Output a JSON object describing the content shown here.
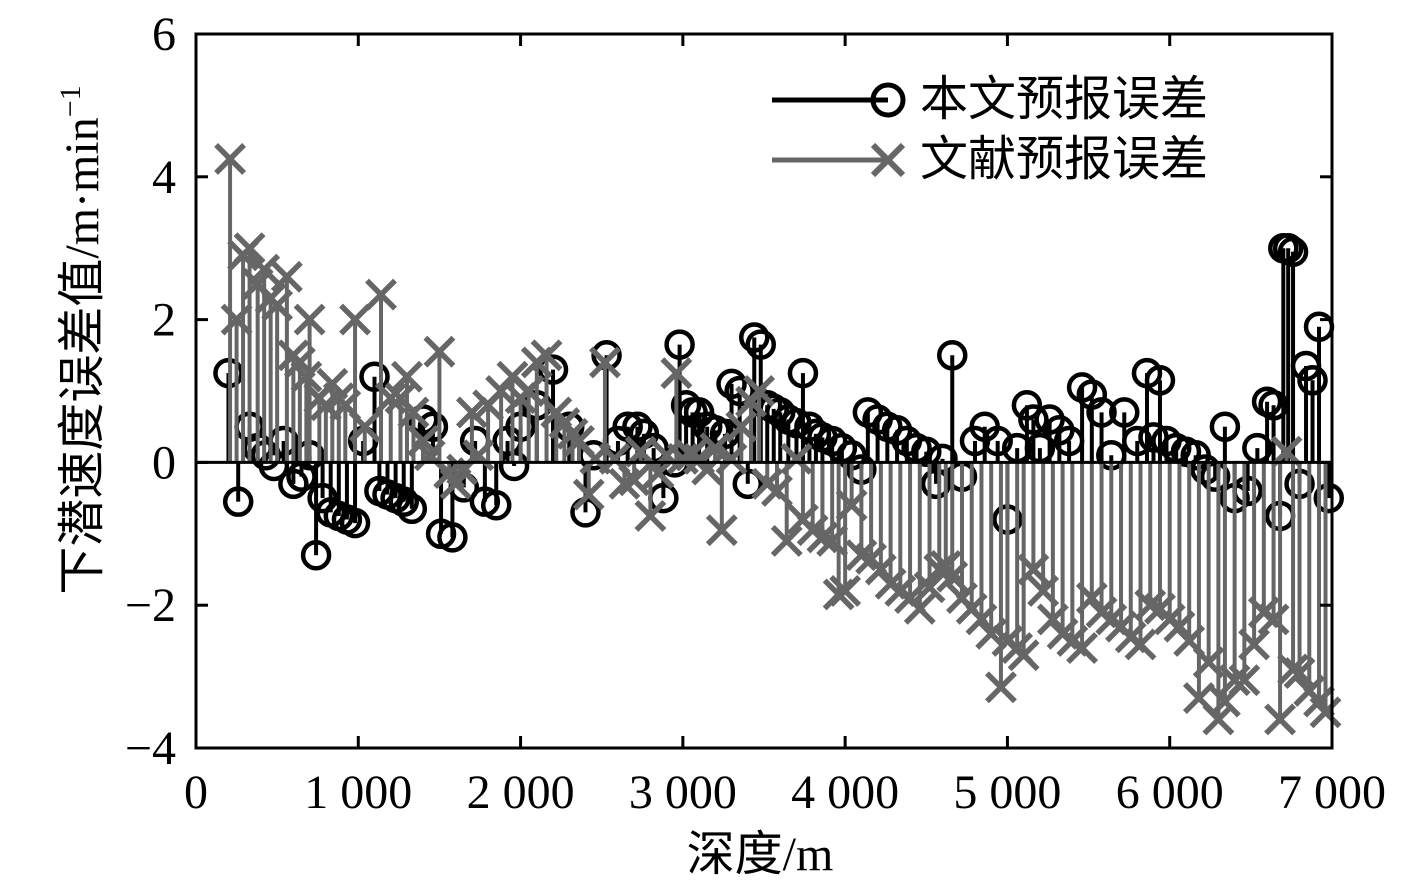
{
  "chart_data": {
    "type": "stem",
    "xlabel": "深度/m",
    "ylabel": "下潜速度误差值/m·min",
    "ylabel_sup": "−1",
    "xlim": [
      0,
      7000
    ],
    "ylim": [
      -4,
      6
    ],
    "x_ticks": [
      0,
      1000,
      2000,
      3000,
      4000,
      5000,
      6000,
      7000
    ],
    "x_tick_labels": [
      "0",
      "1 000",
      "2 000",
      "3 000",
      "4 000",
      "5 000",
      "6 000",
      "7 000"
    ],
    "y_ticks": [
      -4,
      -2,
      0,
      2,
      4,
      6
    ],
    "y_tick_labels": [
      "−4",
      "−2",
      "0",
      "2",
      "4",
      "6"
    ],
    "grid": false,
    "legend_position": "top-right",
    "series": [
      {
        "name": "本文预报误差",
        "color": "#000000",
        "marker": "circle",
        "points": [
          [
            200,
            1.25
          ],
          [
            260,
            -0.55
          ],
          [
            330,
            0.5
          ],
          [
            380,
            0.2
          ],
          [
            430,
            0.1
          ],
          [
            480,
            -0.05
          ],
          [
            540,
            0.3
          ],
          [
            600,
            -0.3
          ],
          [
            650,
            -0.2
          ],
          [
            700,
            0.1
          ],
          [
            740,
            -1.3
          ],
          [
            780,
            -0.5
          ],
          [
            830,
            -0.7
          ],
          [
            880,
            -0.75
          ],
          [
            930,
            -0.8
          ],
          [
            980,
            -0.85
          ],
          [
            1030,
            0.3
          ],
          [
            1100,
            1.2
          ],
          [
            1130,
            -0.4
          ],
          [
            1180,
            -0.45
          ],
          [
            1230,
            -0.5
          ],
          [
            1280,
            -0.55
          ],
          [
            1330,
            -0.65
          ],
          [
            1400,
            0.6
          ],
          [
            1460,
            0.5
          ],
          [
            1510,
            -1.0
          ],
          [
            1580,
            -1.05
          ],
          [
            1650,
            -0.35
          ],
          [
            1720,
            0.3
          ],
          [
            1780,
            -0.55
          ],
          [
            1850,
            -0.6
          ],
          [
            1920,
            0.3
          ],
          [
            1960,
            -0.05
          ],
          [
            2000,
            0.5
          ],
          [
            2100,
            0.8
          ],
          [
            2200,
            1.3
          ],
          [
            2300,
            0.5
          ],
          [
            2400,
            -0.7
          ],
          [
            2450,
            0.1
          ],
          [
            2530,
            1.5
          ],
          [
            2600,
            0.3
          ],
          [
            2660,
            0.5
          ],
          [
            2720,
            0.5
          ],
          [
            2760,
            0.4
          ],
          [
            2820,
            0.2
          ],
          [
            2880,
            -0.5
          ],
          [
            2950,
            0.0
          ],
          [
            2980,
            1.65
          ],
          [
            3020,
            0.8
          ],
          [
            3060,
            0.7
          ],
          [
            3100,
            0.7
          ],
          [
            3150,
            0.5
          ],
          [
            3200,
            0.45
          ],
          [
            3260,
            0.4
          ],
          [
            3300,
            1.1
          ],
          [
            3350,
            1.0
          ],
          [
            3400,
            -0.3
          ],
          [
            3440,
            1.75
          ],
          [
            3480,
            1.65
          ],
          [
            3520,
            0.8
          ],
          [
            3560,
            0.75
          ],
          [
            3600,
            0.7
          ],
          [
            3650,
            0.6
          ],
          [
            3700,
            0.55
          ],
          [
            3740,
            1.25
          ],
          [
            3780,
            0.5
          ],
          [
            3820,
            0.4
          ],
          [
            3860,
            0.35
          ],
          [
            3920,
            0.3
          ],
          [
            3980,
            0.2
          ],
          [
            4040,
            0.1
          ],
          [
            4100,
            -0.1
          ],
          [
            4140,
            0.7
          ],
          [
            4200,
            0.6
          ],
          [
            4260,
            0.5
          ],
          [
            4320,
            0.45
          ],
          [
            4380,
            0.3
          ],
          [
            4440,
            0.2
          ],
          [
            4500,
            0.15
          ],
          [
            4560,
            -0.3
          ],
          [
            4600,
            0.05
          ],
          [
            4660,
            1.5
          ],
          [
            4720,
            -0.2
          ],
          [
            4800,
            0.3
          ],
          [
            4860,
            0.5
          ],
          [
            4940,
            0.3
          ],
          [
            5000,
            -0.8
          ],
          [
            5060,
            0.2
          ],
          [
            5120,
            0.8
          ],
          [
            5160,
            0.6
          ],
          [
            5200,
            0.2
          ],
          [
            5260,
            0.6
          ],
          [
            5320,
            0.45
          ],
          [
            5380,
            0.3
          ],
          [
            5460,
            1.05
          ],
          [
            5520,
            0.95
          ],
          [
            5580,
            0.7
          ],
          [
            5640,
            0.1
          ],
          [
            5720,
            0.7
          ],
          [
            5800,
            0.3
          ],
          [
            5860,
            1.25
          ],
          [
            5900,
            0.35
          ],
          [
            5940,
            1.15
          ],
          [
            5980,
            0.3
          ],
          [
            6040,
            0.2
          ],
          [
            6100,
            0.15
          ],
          [
            6160,
            0.1
          ],
          [
            6220,
            -0.1
          ],
          [
            6280,
            -0.2
          ],
          [
            6340,
            0.5
          ],
          [
            6400,
            -0.5
          ],
          [
            6480,
            -0.4
          ],
          [
            6540,
            0.2
          ],
          [
            6600,
            0.85
          ],
          [
            6640,
            0.8
          ],
          [
            6680,
            -0.75
          ],
          [
            6700,
            3.0
          ],
          [
            6730,
            3.0
          ],
          [
            6760,
            2.95
          ],
          [
            6800,
            -0.3
          ],
          [
            6840,
            1.35
          ],
          [
            6880,
            1.15
          ],
          [
            6920,
            1.9
          ],
          [
            6980,
            -0.5
          ]
        ]
      },
      {
        "name": "文献预报误差",
        "color": "#666666",
        "marker": "x",
        "points": [
          [
            210,
            4.25
          ],
          [
            250,
            2.0
          ],
          [
            290,
            2.9
          ],
          [
            330,
            3.0
          ],
          [
            380,
            2.5
          ],
          [
            420,
            2.7
          ],
          [
            460,
            2.3
          ],
          [
            500,
            2.2
          ],
          [
            560,
            2.6
          ],
          [
            600,
            1.5
          ],
          [
            640,
            1.4
          ],
          [
            680,
            1.2
          ],
          [
            700,
            2.0
          ],
          [
            760,
            0.9
          ],
          [
            800,
            0.8
          ],
          [
            840,
            1.1
          ],
          [
            880,
            0.9
          ],
          [
            920,
            0.8
          ],
          [
            980,
            2.0
          ],
          [
            1040,
            0.5
          ],
          [
            1140,
            2.35
          ],
          [
            1200,
            0.9
          ],
          [
            1260,
            0.9
          ],
          [
            1300,
            1.2
          ],
          [
            1340,
            0.7
          ],
          [
            1400,
            0.3
          ],
          [
            1440,
            0.1
          ],
          [
            1500,
            1.55
          ],
          [
            1560,
            -0.15
          ],
          [
            1600,
            -0.3
          ],
          [
            1640,
            -0.1
          ],
          [
            1700,
            0.7
          ],
          [
            1740,
            0.1
          ],
          [
            1800,
            0.8
          ],
          [
            1880,
            1.0
          ],
          [
            1950,
            1.2
          ],
          [
            2000,
            0.9
          ],
          [
            2050,
            1.0
          ],
          [
            2100,
            1.4
          ],
          [
            2160,
            1.5
          ],
          [
            2220,
            0.7
          ],
          [
            2270,
            0.55
          ],
          [
            2320,
            0.4
          ],
          [
            2360,
            0.3
          ],
          [
            2420,
            -0.45
          ],
          [
            2460,
            0.05
          ],
          [
            2520,
            1.4
          ],
          [
            2580,
            0.05
          ],
          [
            2640,
            -0.3
          ],
          [
            2700,
            -0.25
          ],
          [
            2740,
            0.15
          ],
          [
            2800,
            -0.75
          ],
          [
            2850,
            -0.15
          ],
          [
            2900,
            0.1
          ],
          [
            2960,
            1.25
          ],
          [
            3000,
            0.05
          ],
          [
            3050,
            0.1
          ],
          [
            3100,
            0.05
          ],
          [
            3150,
            -0.1
          ],
          [
            3200,
            0.2
          ],
          [
            3240,
            -0.95
          ],
          [
            3300,
            0.05
          ],
          [
            3360,
            0.5
          ],
          [
            3420,
            0.85
          ],
          [
            3470,
            1.0
          ],
          [
            3520,
            -0.3
          ],
          [
            3580,
            -0.4
          ],
          [
            3640,
            -1.1
          ],
          [
            3700,
            0.05
          ],
          [
            3740,
            -0.8
          ],
          [
            3800,
            -0.95
          ],
          [
            3860,
            -1.05
          ],
          [
            3920,
            -1.1
          ],
          [
            3960,
            -1.85
          ],
          [
            4000,
            -1.8
          ],
          [
            4040,
            -0.6
          ],
          [
            4100,
            -1.3
          ],
          [
            4160,
            -1.35
          ],
          [
            4220,
            -1.5
          ],
          [
            4280,
            -1.7
          ],
          [
            4340,
            -1.8
          ],
          [
            4400,
            -1.9
          ],
          [
            4460,
            -2.05
          ],
          [
            4520,
            -1.75
          ],
          [
            4580,
            -1.5
          ],
          [
            4620,
            -1.45
          ],
          [
            4660,
            -1.6
          ],
          [
            4720,
            -1.9
          ],
          [
            4780,
            -2.05
          ],
          [
            4840,
            -2.2
          ],
          [
            4900,
            -2.4
          ],
          [
            4960,
            -3.15
          ],
          [
            5000,
            -2.5
          ],
          [
            5060,
            -2.6
          ],
          [
            5100,
            -2.7
          ],
          [
            5160,
            -1.5
          ],
          [
            5220,
            -1.8
          ],
          [
            5280,
            -2.2
          ],
          [
            5340,
            -2.4
          ],
          [
            5400,
            -2.5
          ],
          [
            5460,
            -2.6
          ],
          [
            5520,
            -1.9
          ],
          [
            5580,
            -2.1
          ],
          [
            5640,
            -2.2
          ],
          [
            5700,
            -2.3
          ],
          [
            5760,
            -2.45
          ],
          [
            5820,
            -2.55
          ],
          [
            5880,
            -2.0
          ],
          [
            5940,
            -2.05
          ],
          [
            6000,
            -2.2
          ],
          [
            6060,
            -2.3
          ],
          [
            6120,
            -2.5
          ],
          [
            6180,
            -3.3
          ],
          [
            6240,
            -2.8
          ],
          [
            6300,
            -3.6
          ],
          [
            6340,
            -3.35
          ],
          [
            6400,
            -3.05
          ],
          [
            6460,
            -3.05
          ],
          [
            6520,
            -2.55
          ],
          [
            6580,
            -2.1
          ],
          [
            6640,
            -2.2
          ],
          [
            6680,
            -3.6
          ],
          [
            6720,
            0.15
          ],
          [
            6760,
            -2.9
          ],
          [
            6800,
            -2.95
          ],
          [
            6860,
            -3.2
          ],
          [
            6920,
            -3.35
          ],
          [
            6960,
            -3.5
          ]
        ]
      }
    ]
  }
}
